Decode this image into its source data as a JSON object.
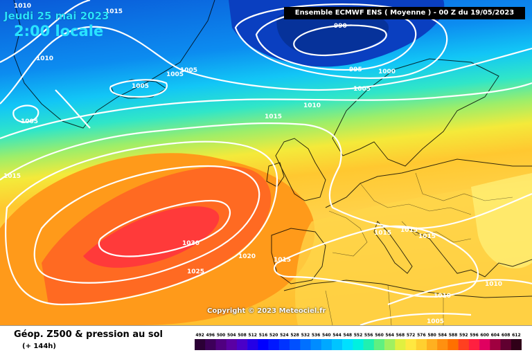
{
  "header": {
    "date": "Jeudi 25 mai 2023",
    "time": "2:00 locale",
    "run_banner": "Ensemble ECMWF ENS  ( Moyenne )  -  00 Z du 19/05/2023"
  },
  "map": {
    "copyright": "Copyright © 2023 Meteociel.fr",
    "isobar_labels": [
      {
        "id": "l1010-nw",
        "text": "1010"
      },
      {
        "id": "l1015-top",
        "text": "1015"
      },
      {
        "id": "l1010-w",
        "text": "1010"
      },
      {
        "id": "l1005-gl",
        "text": "1005"
      },
      {
        "id": "l1005-ic",
        "text": "1005"
      },
      {
        "id": "l1005-b",
        "text": "1005"
      },
      {
        "id": "l1005-c",
        "text": "1005"
      },
      {
        "id": "l990",
        "text": "990"
      },
      {
        "id": "l995",
        "text": "995"
      },
      {
        "id": "l1000",
        "text": "1000"
      },
      {
        "id": "l1005-no",
        "text": "1005"
      },
      {
        "id": "l1010-ns",
        "text": "1010"
      },
      {
        "id": "l1015-at",
        "text": "1015"
      },
      {
        "id": "l1015-w",
        "text": "1015"
      },
      {
        "id": "l1030",
        "text": "1030"
      },
      {
        "id": "l1025",
        "text": "1025"
      },
      {
        "id": "l1020",
        "text": "1020"
      },
      {
        "id": "l1015-ib",
        "text": "1015"
      },
      {
        "id": "l1015-it",
        "text": "1015"
      },
      {
        "id": "l1015-ba1",
        "text": "1015"
      },
      {
        "id": "l1015-ba2",
        "text": "1015"
      },
      {
        "id": "l1010-tu",
        "text": "1010"
      },
      {
        "id": "l1010-me",
        "text": "1010"
      },
      {
        "id": "l1005-af",
        "text": "1005"
      }
    ]
  },
  "footer": {
    "title": "Géop. Z500 & pression au sol",
    "subtitle": "(+ 144h)"
  },
  "legend": {
    "values": [
      "492",
      "496",
      "500",
      "504",
      "508",
      "512",
      "516",
      "520",
      "524",
      "528",
      "532",
      "536",
      "540",
      "544",
      "548",
      "552",
      "556",
      "560",
      "564",
      "568",
      "572",
      "576",
      "580",
      "584",
      "588",
      "592",
      "596",
      "600",
      "604",
      "608",
      "612"
    ],
    "colors": [
      "#2b0035",
      "#3d0059",
      "#500080",
      "#5a00a3",
      "#4a00c8",
      "#2400e6",
      "#0000ff",
      "#0018ff",
      "#0033ff",
      "#0050ff",
      "#0070ff",
      "#008cff",
      "#00a8ff",
      "#00c4ff",
      "#00e0ff",
      "#00f0e0",
      "#20f0b0",
      "#60f080",
      "#a0f060",
      "#e0f040",
      "#ffe840",
      "#ffd030",
      "#ffb020",
      "#ff9010",
      "#ff7000",
      "#ff4020",
      "#ff2040",
      "#e00060",
      "#a00040",
      "#600030",
      "#300018"
    ]
  }
}
